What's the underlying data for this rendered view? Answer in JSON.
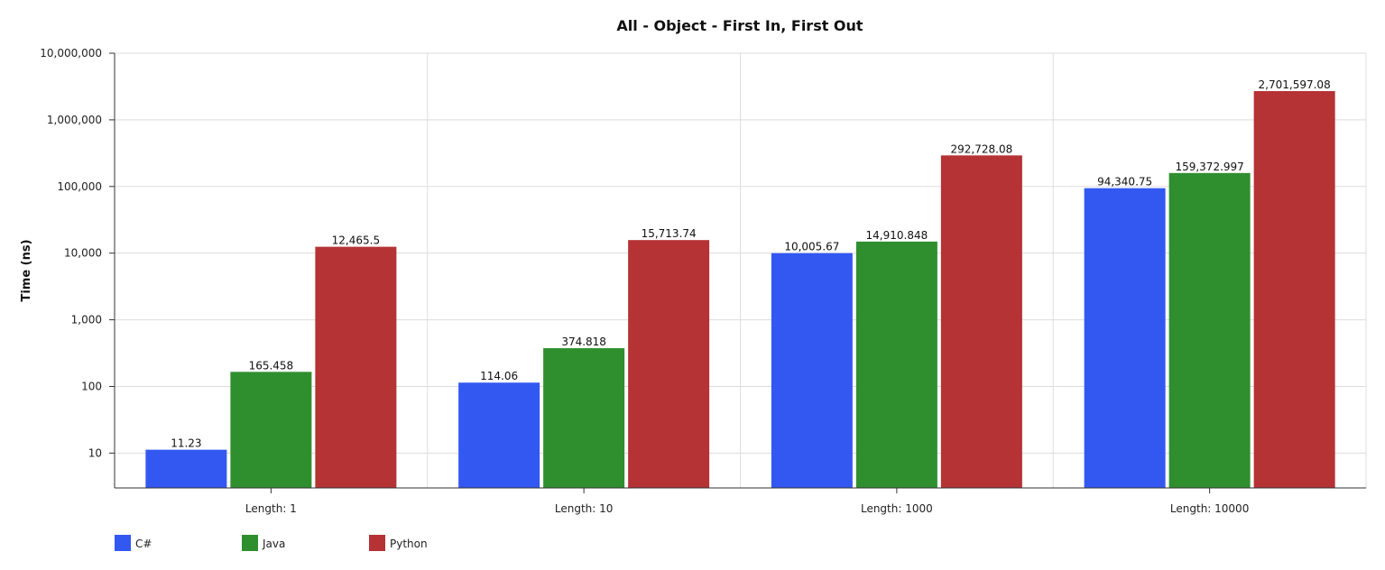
{
  "chart_data": {
    "type": "bar",
    "title": "All - Object - First In, First Out",
    "xlabel": "",
    "ylabel": "Time (ns)",
    "yscale": "log",
    "ylim": [
      3,
      10000000
    ],
    "yticks": [
      10,
      100,
      1000,
      10000,
      100000,
      1000000,
      10000000
    ],
    "ytick_labels": [
      "10",
      "100",
      "1,000",
      "10,000",
      "100,000",
      "1,000,000",
      "10,000,000"
    ],
    "grid": true,
    "legend_position": "bottom-left",
    "categories": [
      "Length: 1",
      "Length: 10",
      "Length: 1000",
      "Length: 10000"
    ],
    "series": [
      {
        "name": "C#",
        "color": "#3358f2",
        "values": [
          11.23,
          114.06,
          10005.67,
          94340.75
        ],
        "labels": [
          "11.23",
          "114.06",
          "10,005.67",
          "94,340.75"
        ]
      },
      {
        "name": "Java",
        "color": "#2f8f2f",
        "values": [
          165.458,
          374.818,
          14910.848,
          159372.997
        ],
        "labels": [
          "165.458",
          "374.818",
          "14,910.848",
          "159,372.997"
        ]
      },
      {
        "name": "Python",
        "color": "#b53235",
        "values": [
          12465.5,
          15713.74,
          292728.08,
          2701597.08
        ],
        "labels": [
          "12,465.5",
          "15,713.74",
          "292,728.08",
          "2,701,597.08"
        ]
      }
    ]
  }
}
